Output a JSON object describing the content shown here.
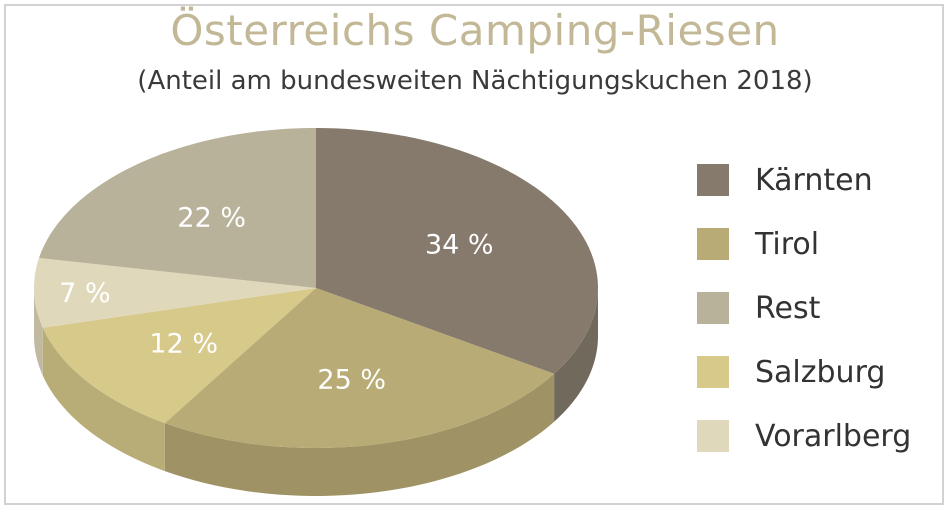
{
  "chart_data": {
    "type": "pie",
    "title": "Österreichs Camping-Riesen",
    "subtitle": "(Anteil am bundesweiten Nächtigungskuchen 2018)",
    "unit": "%",
    "series": [
      {
        "name": "Kärnten",
        "value": 34,
        "label": "34 %",
        "color": "#857a6c"
      },
      {
        "name": "Tirol",
        "value": 25,
        "label": "25 %",
        "color": "#b9ab75"
      },
      {
        "name": "Salzburg",
        "value": 12,
        "label": "12 %",
        "color": "#d6c98a"
      },
      {
        "name": "Vorarlberg",
        "value": 7,
        "label": "7 %",
        "color": "#e0d8bb"
      },
      {
        "name": "Rest",
        "value": 22,
        "label": "22 %",
        "color": "#b9b29a"
      }
    ],
    "slice_order": [
      "Kärnten",
      "Tirol",
      "Salzburg",
      "Vorarlberg",
      "Rest"
    ],
    "legend": {
      "placement": "right",
      "items": [
        {
          "label": "Kärnten",
          "color": "#857a6c"
        },
        {
          "label": "Tirol",
          "color": "#b9ab75"
        },
        {
          "label": "Rest",
          "color": "#b9b29a"
        },
        {
          "label": "Salzburg",
          "color": "#d6c98a"
        },
        {
          "label": "Vorarlberg",
          "color": "#e0d8bb"
        }
      ]
    },
    "style": "3d-tilted"
  }
}
